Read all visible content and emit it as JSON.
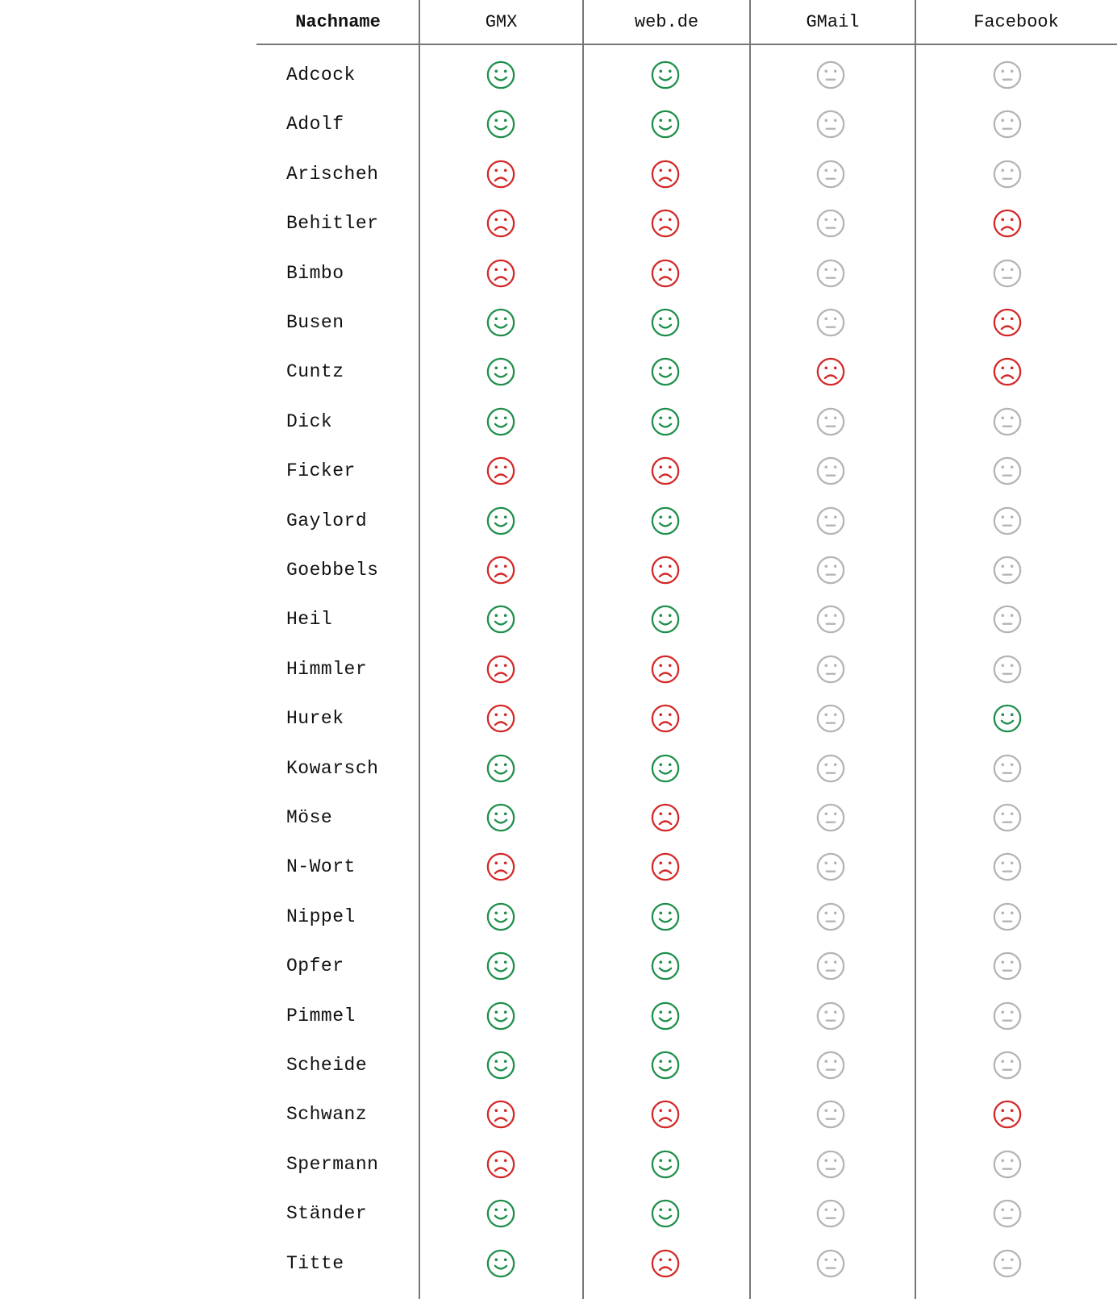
{
  "table": {
    "columns": [
      "Nachname",
      "GMX",
      "web.de",
      "GMail",
      "Facebook"
    ],
    "status_legend": {
      "pass": {
        "icon": "smiley-happy-icon",
        "color": "#1e8f4a"
      },
      "fail": {
        "icon": "smiley-sad-icon",
        "color": "#d42828"
      },
      "unknown": {
        "icon": "smiley-neutral-icon",
        "color": "#b4b4b4"
      }
    },
    "rows": [
      {
        "name": "Adcock",
        "statuses": [
          "pass",
          "pass",
          "unknown",
          "unknown"
        ]
      },
      {
        "name": "Adolf",
        "statuses": [
          "pass",
          "pass",
          "unknown",
          "unknown"
        ]
      },
      {
        "name": "Arischeh",
        "statuses": [
          "fail",
          "fail",
          "unknown",
          "unknown"
        ]
      },
      {
        "name": "Behitler",
        "statuses": [
          "fail",
          "fail",
          "unknown",
          "fail"
        ]
      },
      {
        "name": "Bimbo",
        "statuses": [
          "fail",
          "fail",
          "unknown",
          "unknown"
        ]
      },
      {
        "name": "Busen",
        "statuses": [
          "pass",
          "pass",
          "unknown",
          "fail"
        ]
      },
      {
        "name": "Cuntz",
        "statuses": [
          "pass",
          "pass",
          "fail",
          "fail"
        ]
      },
      {
        "name": "Dick",
        "statuses": [
          "pass",
          "pass",
          "unknown",
          "unknown"
        ]
      },
      {
        "name": "Ficker",
        "statuses": [
          "fail",
          "fail",
          "unknown",
          "unknown"
        ]
      },
      {
        "name": "Gaylord",
        "statuses": [
          "pass",
          "pass",
          "unknown",
          "unknown"
        ]
      },
      {
        "name": "Goebbels",
        "statuses": [
          "fail",
          "fail",
          "unknown",
          "unknown"
        ]
      },
      {
        "name": "Heil",
        "statuses": [
          "pass",
          "pass",
          "unknown",
          "unknown"
        ]
      },
      {
        "name": "Himmler",
        "statuses": [
          "fail",
          "fail",
          "unknown",
          "unknown"
        ]
      },
      {
        "name": "Hurek",
        "statuses": [
          "fail",
          "fail",
          "unknown",
          "pass"
        ]
      },
      {
        "name": "Kowarsch",
        "statuses": [
          "pass",
          "pass",
          "unknown",
          "unknown"
        ]
      },
      {
        "name": "Möse",
        "statuses": [
          "pass",
          "fail",
          "unknown",
          "unknown"
        ]
      },
      {
        "name": "N-Wort",
        "statuses": [
          "fail",
          "fail",
          "unknown",
          "unknown"
        ]
      },
      {
        "name": "Nippel",
        "statuses": [
          "pass",
          "pass",
          "unknown",
          "unknown"
        ]
      },
      {
        "name": "Opfer",
        "statuses": [
          "pass",
          "pass",
          "unknown",
          "unknown"
        ]
      },
      {
        "name": "Pimmel",
        "statuses": [
          "pass",
          "pass",
          "unknown",
          "unknown"
        ]
      },
      {
        "name": "Scheide",
        "statuses": [
          "pass",
          "pass",
          "unknown",
          "unknown"
        ]
      },
      {
        "name": "Schwanz",
        "statuses": [
          "fail",
          "fail",
          "unknown",
          "fail"
        ]
      },
      {
        "name": "Spermann",
        "statuses": [
          "fail",
          "pass",
          "unknown",
          "unknown"
        ]
      },
      {
        "name": "Ständer",
        "statuses": [
          "pass",
          "pass",
          "unknown",
          "unknown"
        ]
      },
      {
        "name": "Titte",
        "statuses": [
          "pass",
          "fail",
          "unknown",
          "unknown"
        ]
      }
    ]
  }
}
